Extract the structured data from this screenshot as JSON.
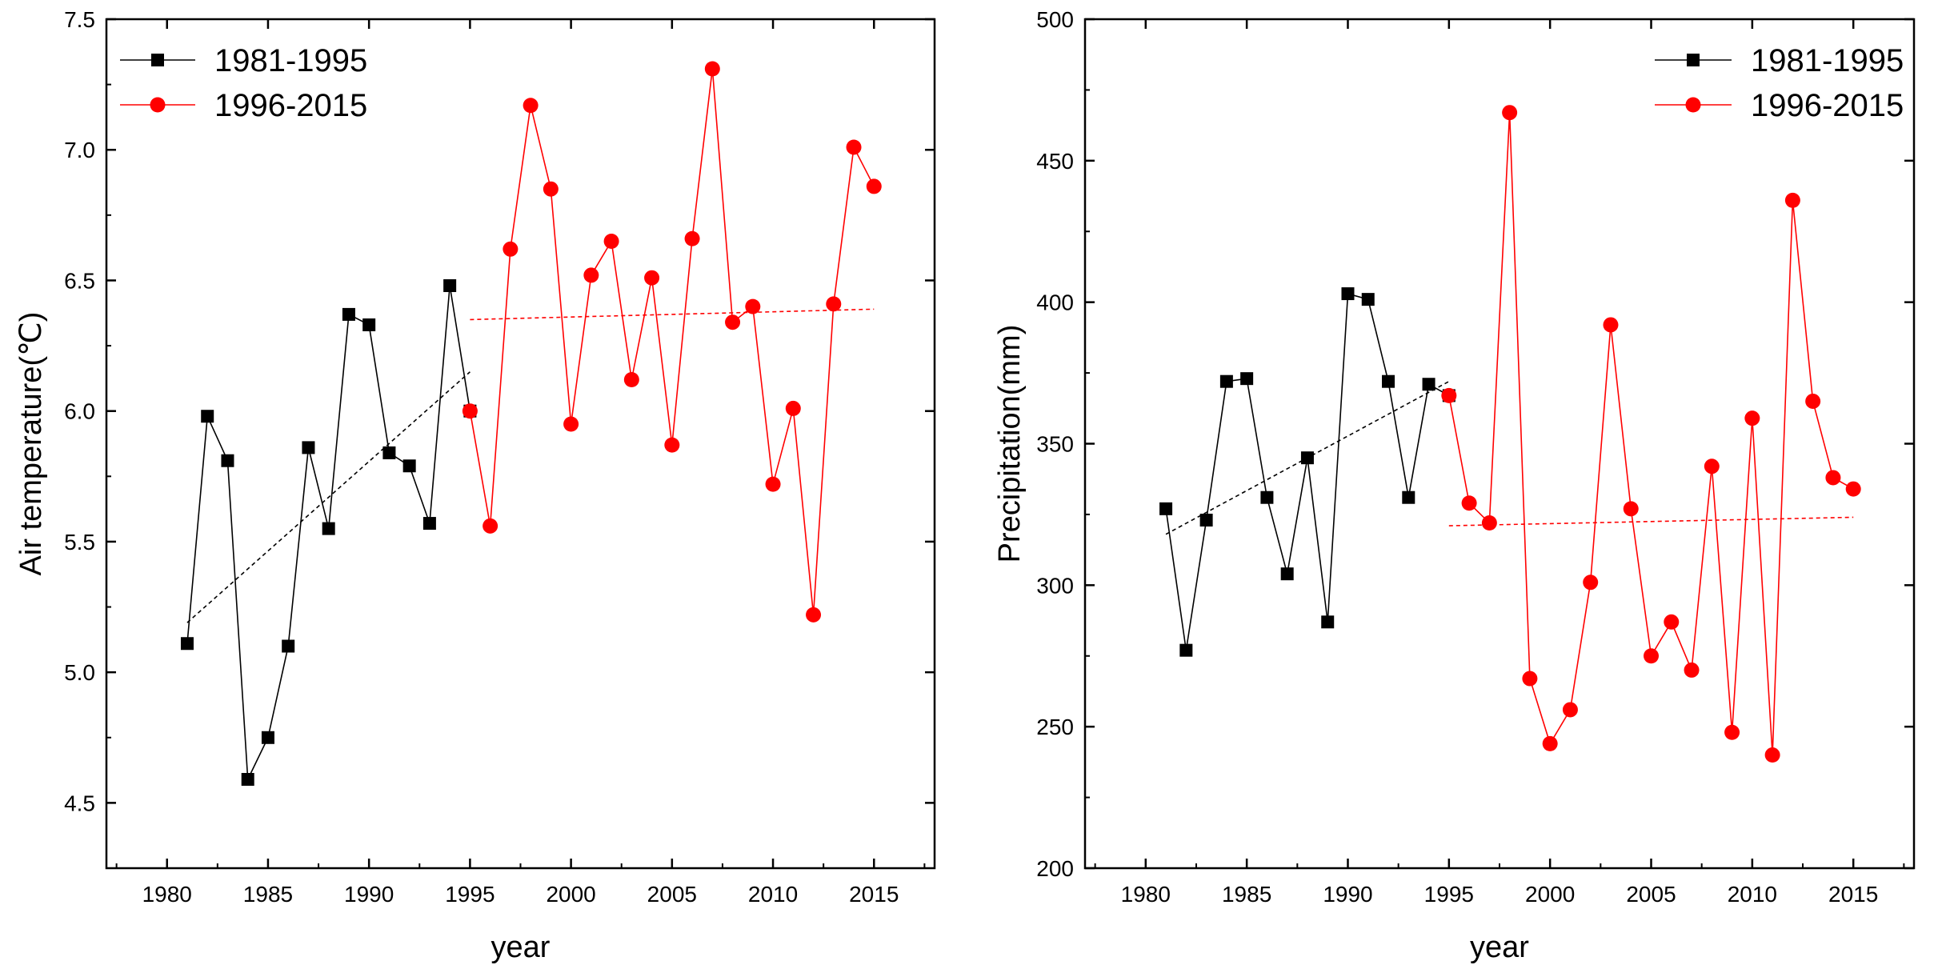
{
  "chart_data": [
    {
      "type": "line",
      "title": "",
      "xlabel": "year",
      "ylabel": "Air temperature(℃)",
      "xlim": [
        1977,
        2018
      ],
      "ylim": [
        4.25,
        7.5
      ],
      "xticks": [
        1980,
        1985,
        1990,
        1995,
        2000,
        2005,
        2010,
        2015
      ],
      "xtick_labels": [
        "1980",
        "1985",
        "1990",
        "1995",
        "2000",
        "2005",
        "2010",
        "2015"
      ],
      "yticks": [
        4.5,
        5.0,
        5.5,
        6.0,
        6.5,
        7.0,
        7.5
      ],
      "ytick_labels": [
        "4.5",
        "5.0",
        "5.5",
        "6.0",
        "6.5",
        "7.0",
        "7.5"
      ],
      "legend_position": "top-left",
      "series": [
        {
          "name": "1981-1995",
          "color": "#000000",
          "marker": "square",
          "x": [
            1981,
            1982,
            1983,
            1984,
            1985,
            1986,
            1987,
            1988,
            1989,
            1990,
            1991,
            1992,
            1993,
            1994,
            1995
          ],
          "values": [
            5.11,
            5.98,
            5.81,
            4.59,
            4.75,
            5.1,
            5.86,
            5.55,
            6.37,
            6.33,
            5.84,
            5.79,
            5.57,
            6.48,
            6.0
          ]
        },
        {
          "name": "1996-2015",
          "color": "#ff0000",
          "marker": "circle",
          "x": [
            1995,
            1996,
            1997,
            1998,
            1999,
            2000,
            2001,
            2002,
            2003,
            2004,
            2005,
            2006,
            2007,
            2008,
            2009,
            2010,
            2011,
            2012,
            2013,
            2014,
            2015
          ],
          "values": [
            6.0,
            5.56,
            6.62,
            7.17,
            6.85,
            5.95,
            6.52,
            6.65,
            6.12,
            6.51,
            5.87,
            6.66,
            7.31,
            6.34,
            6.4,
            5.72,
            6.01,
            5.22,
            6.41,
            7.01,
            6.86
          ]
        }
      ],
      "trendlines": [
        {
          "name": "1981-1995 trend",
          "color": "#000000",
          "x": [
            1981,
            1995
          ],
          "values": [
            5.19,
            6.15
          ]
        },
        {
          "name": "1996-2015 trend",
          "color": "#ff0000",
          "x": [
            1995,
            2015
          ],
          "values": [
            6.35,
            6.39
          ]
        }
      ]
    },
    {
      "type": "line",
      "title": "",
      "xlabel": "year",
      "ylabel": "Precipitation(mm)",
      "xlim": [
        1977,
        2018
      ],
      "ylim": [
        200,
        500
      ],
      "xticks": [
        1980,
        1985,
        1990,
        1995,
        2000,
        2005,
        2010,
        2015
      ],
      "xtick_labels": [
        "1980",
        "1985",
        "1990",
        "1995",
        "2000",
        "2005",
        "2010",
        "2015"
      ],
      "yticks": [
        200,
        250,
        300,
        350,
        400,
        450,
        500
      ],
      "ytick_labels": [
        "200",
        "250",
        "300",
        "350",
        "400",
        "450",
        "500"
      ],
      "legend_position": "top-right",
      "series": [
        {
          "name": "1981-1995",
          "color": "#000000",
          "marker": "square",
          "x": [
            1981,
            1982,
            1983,
            1984,
            1985,
            1986,
            1987,
            1988,
            1989,
            1990,
            1991,
            1992,
            1993,
            1994,
            1995
          ],
          "values": [
            327,
            277,
            323,
            372,
            373,
            331,
            304,
            345,
            287,
            403,
            401,
            372,
            331,
            371,
            367
          ]
        },
        {
          "name": "1996-2015",
          "color": "#ff0000",
          "marker": "circle",
          "x": [
            1995,
            1996,
            1997,
            1998,
            1999,
            2000,
            2001,
            2002,
            2003,
            2004,
            2005,
            2006,
            2007,
            2008,
            2009,
            2010,
            2011,
            2012,
            2013,
            2014,
            2015
          ],
          "values": [
            367,
            329,
            322,
            467,
            267,
            244,
            256,
            301,
            392,
            327,
            275,
            287,
            270,
            342,
            248,
            359,
            240,
            436,
            365,
            338,
            334
          ]
        }
      ],
      "trendlines": [
        {
          "name": "1981-1995 trend",
          "color": "#000000",
          "x": [
            1981,
            1995
          ],
          "values": [
            318,
            372
          ]
        },
        {
          "name": "1996-2015 trend",
          "color": "#ff0000",
          "x": [
            1995,
            2015
          ],
          "values": [
            321,
            324
          ]
        }
      ]
    }
  ]
}
